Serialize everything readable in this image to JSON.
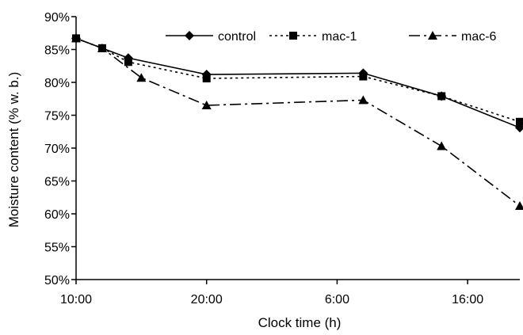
{
  "chart_data": {
    "type": "line",
    "xlabel": "Clock time (h)",
    "ylabel": "Moisture content (% w. b.)",
    "x_tick_labels": [
      "10:00",
      "20:00",
      "6:00",
      "16:00"
    ],
    "x_tick_hours": [
      0,
      10,
      20,
      30
    ],
    "xlim": [
      0,
      34
    ],
    "ylim": [
      50,
      90
    ],
    "y_tick_values": [
      50,
      55,
      60,
      65,
      70,
      75,
      80,
      85,
      90
    ],
    "y_tick_labels": [
      "50%",
      "55%",
      "60%",
      "65%",
      "70%",
      "75%",
      "80%",
      "85%",
      "90%"
    ],
    "grid": false,
    "legend_position": "top-right",
    "series": [
      {
        "name": "control",
        "marker": "diamond",
        "line_style": "solid",
        "color": "#000000",
        "x": [
          0,
          4,
          10,
          22,
          28,
          34
        ],
        "y": [
          86.7,
          83.7,
          81.2,
          81.4,
          77.9,
          73.1
        ]
      },
      {
        "name": "mac-1",
        "marker": "square",
        "line_style": "dotted",
        "color": "#000000",
        "x": [
          0,
          2,
          4,
          10,
          22,
          28,
          34
        ],
        "y": [
          86.7,
          85.2,
          83.1,
          80.6,
          80.9,
          77.9,
          74.0
        ]
      },
      {
        "name": "mac-6",
        "marker": "triangle",
        "line_style": "dashdot",
        "color": "#000000",
        "x": [
          0,
          2,
          5,
          10,
          22,
          28,
          34
        ],
        "y": [
          86.7,
          85.2,
          80.7,
          76.5,
          77.3,
          70.3,
          61.2
        ]
      }
    ]
  }
}
